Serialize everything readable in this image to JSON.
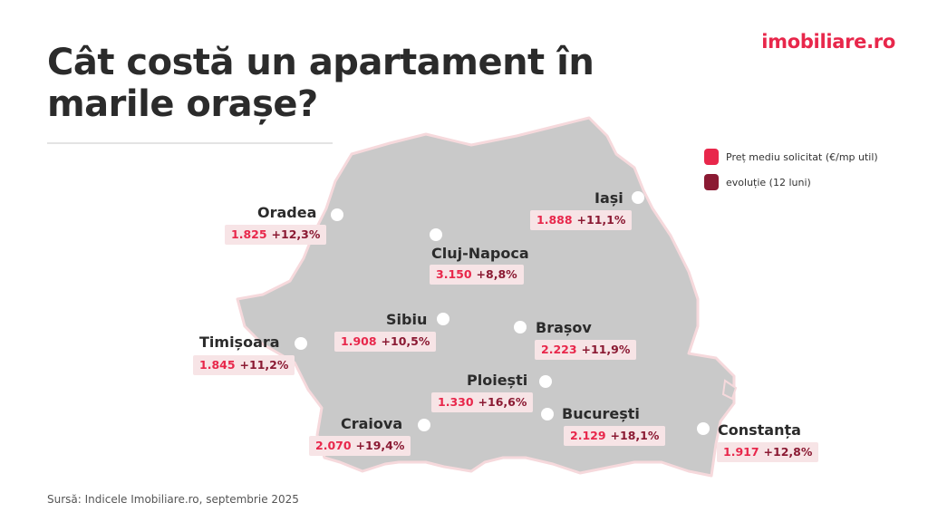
{
  "header": {
    "title_line1": "Cât costă un apartament în",
    "title_line2": "marile orașe?",
    "logo_text": "imobiliare.ro"
  },
  "legend": {
    "items": [
      {
        "label": "Preț mediu solicitat (€/mp util)",
        "color": "#e8274b"
      },
      {
        "label": "evoluție (12 luni)",
        "color": "#8b1a33"
      }
    ]
  },
  "cities": [
    {
      "name": "Oradea",
      "price": "1.825",
      "change": "+12,3%"
    },
    {
      "name": "Iași",
      "price": "1.888",
      "change": "+11,1%"
    },
    {
      "name": "Cluj-Napoca",
      "price": "3.150",
      "change": "+8,8%"
    },
    {
      "name": "Sibiu",
      "price": "1.908",
      "change": "+10,5%"
    },
    {
      "name": "Brașov",
      "price": "2.223",
      "change": "+11,9%"
    },
    {
      "name": "Timișoara",
      "price": "1.845",
      "change": "+11,2%"
    },
    {
      "name": "Ploiești",
      "price": "1.330",
      "change": "+16,6%"
    },
    {
      "name": "Craiova",
      "price": "2.070",
      "change": "+19,4%"
    },
    {
      "name": "București",
      "price": "2.129",
      "change": "+18,1%"
    },
    {
      "name": "Constanța",
      "price": "1.917",
      "change": "+12,8%"
    }
  ],
  "colors": {
    "map_fill": "#c9c9c9",
    "price": "#e8274b",
    "change": "#8b1a33",
    "badge_bg": "#f7e4e6"
  },
  "footer": {
    "source": "Sursă: Indicele Imobiliare.ro, septembrie 2025"
  }
}
